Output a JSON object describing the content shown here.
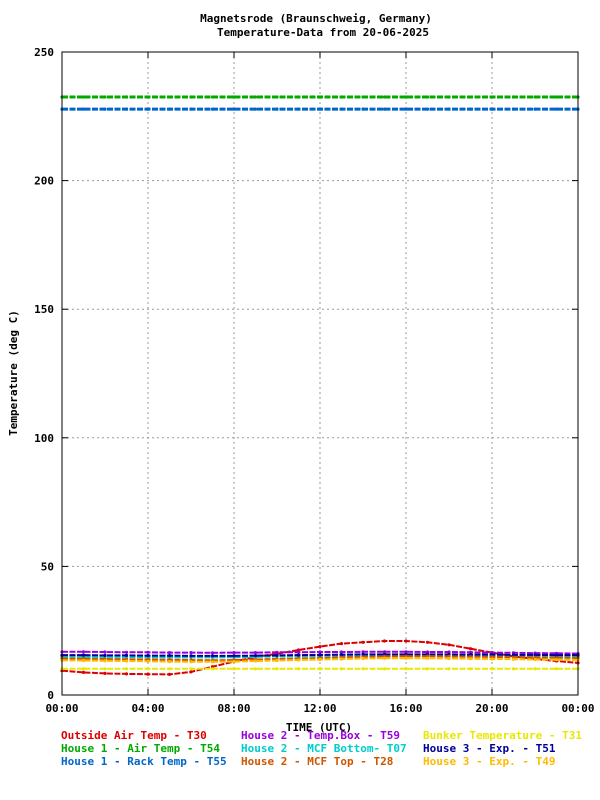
{
  "chart_data": {
    "type": "line",
    "title": "Magnetsrode (Braunschweig, Germany)",
    "subtitle": "Temperature-Data from 20-06-2025",
    "xlabel": "TIME (UTC)",
    "ylabel": "Temperature (deg C)",
    "xlim": [
      0,
      24
    ],
    "ylim": [
      0,
      250
    ],
    "x_ticks": [
      "00:00",
      "04:00",
      "08:00",
      "12:00",
      "16:00",
      "20:00",
      "00:00"
    ],
    "y_ticks": [
      0,
      50,
      100,
      150,
      200,
      250
    ],
    "grid": true,
    "legend_position": "bottom",
    "x_hours": [
      0,
      1,
      2,
      3,
      4,
      5,
      6,
      7,
      8,
      9,
      10,
      11,
      12,
      13,
      14,
      15,
      16,
      17,
      18,
      19,
      20,
      21,
      22,
      23,
      24
    ],
    "series": [
      {
        "name": "Outside Air Temp",
        "code": "T30",
        "color": "#dd0000",
        "values": [
          9.5,
          8.8,
          8.4,
          8.2,
          8.1,
          8.0,
          9.0,
          11.0,
          13.0,
          14.8,
          16.0,
          17.5,
          18.8,
          20.0,
          20.5,
          21.0,
          21.0,
          20.5,
          19.5,
          18.0,
          16.5,
          15.0,
          14.0,
          13.2,
          12.5
        ]
      },
      {
        "name": "House 2 - Temp.Box",
        "code": "T59",
        "color": "#9900dd",
        "values": [
          16.8,
          16.8,
          16.7,
          16.6,
          16.6,
          16.5,
          16.5,
          16.4,
          16.5,
          16.5,
          16.6,
          16.6,
          16.7,
          16.7,
          16.8,
          16.8,
          16.8,
          16.7,
          16.7,
          16.6,
          16.5,
          16.4,
          16.3,
          16.2,
          16.1
        ]
      },
      {
        "name": "Bunker Temperature",
        "code": "T31",
        "color": "#e8e800",
        "values": [
          10.2,
          10.2,
          10.2,
          10.2,
          10.2,
          10.2,
          10.2,
          10.2,
          10.2,
          10.2,
          10.2,
          10.2,
          10.2,
          10.2,
          10.2,
          10.2,
          10.2,
          10.2,
          10.2,
          10.2,
          10.2,
          10.2,
          10.2,
          10.2,
          10.2
        ]
      },
      {
        "name": "House 1 - Air  Temp",
        "code": "T54",
        "color": "#00aa00",
        "values": [
          232.5,
          232.5,
          232.5,
          232.5,
          232.5,
          232.5,
          232.5,
          232.5,
          232.5,
          232.5,
          232.5,
          232.5,
          232.5,
          232.5,
          232.5,
          232.5,
          232.5,
          232.5,
          232.5,
          232.5,
          232.5,
          232.5,
          232.5,
          232.5,
          232.5
        ]
      },
      {
        "name": "House 2 - MCF Bottom",
        "code": "T07",
        "color": "#00cccc",
        "values": [
          15.0,
          14.9,
          14.8,
          14.8,
          14.7,
          14.6,
          14.6,
          14.6,
          14.7,
          14.8,
          15.0,
          15.1,
          15.2,
          15.3,
          15.4,
          15.5,
          15.5,
          15.5,
          15.4,
          15.4,
          15.3,
          15.2,
          15.1,
          15.0,
          15.0
        ]
      },
      {
        "name": "House 3 - Exp.",
        "code": "T51",
        "color": "#000099",
        "values": [
          15.5,
          15.5,
          15.4,
          15.4,
          15.3,
          15.3,
          15.2,
          15.2,
          15.2,
          15.3,
          15.4,
          15.5,
          15.6,
          15.7,
          15.8,
          15.8,
          15.8,
          15.8,
          15.8,
          15.7,
          15.7,
          15.6,
          15.6,
          15.5,
          15.5
        ]
      },
      {
        "name": "House 1 - Rack Temp",
        "code": "T55",
        "color": "#0066cc",
        "values": [
          227.8,
          227.8,
          227.8,
          227.8,
          227.8,
          227.8,
          227.8,
          227.8,
          227.8,
          227.8,
          227.8,
          227.8,
          227.8,
          227.8,
          227.8,
          227.8,
          227.8,
          227.8,
          227.8,
          227.8,
          227.8,
          227.8,
          227.8,
          227.8,
          227.8
        ]
      },
      {
        "name": "House 2 - MCF Top",
        "code": "T28",
        "color": "#cc5500",
        "values": [
          14.2,
          14.1,
          14.0,
          13.9,
          13.8,
          13.7,
          13.6,
          13.5,
          13.6,
          13.8,
          14.0,
          14.2,
          14.4,
          14.6,
          14.8,
          15.0,
          15.1,
          15.1,
          15.0,
          14.9,
          14.8,
          14.7,
          14.6,
          14.5,
          14.4
        ]
      },
      {
        "name": "House 3 - Exp.",
        "code": "T49",
        "color": "#ffbb00",
        "values": [
          13.5,
          13.4,
          13.3,
          13.2,
          13.1,
          13.0,
          12.9,
          12.9,
          13.0,
          13.2,
          13.4,
          13.6,
          13.8,
          14.0,
          14.2,
          14.3,
          14.3,
          14.3,
          14.2,
          14.1,
          14.0,
          13.9,
          13.8,
          13.7,
          13.6
        ]
      }
    ],
    "legend_rows": [
      [
        {
          "label": "Outside Air Temp    - T30",
          "color": "#dd0000"
        },
        {
          "label": "House 2 - Temp.Box  - T59",
          "color": "#9900dd"
        },
        {
          "label": "Bunker Temperature  - T31",
          "color": "#e8e800"
        }
      ],
      [
        {
          "label": "House 1 - Air  Temp - T54",
          "color": "#00aa00"
        },
        {
          "label": "House 2 - MCF Bottom- T07",
          "color": "#00cccc"
        },
        {
          "label": "House 3 - Exp.      - T51",
          "color": "#000099"
        }
      ],
      [
        {
          "label": "House 1 - Rack Temp - T55",
          "color": "#0066cc"
        },
        {
          "label": "House 2 - MCF Top   - T28",
          "color": "#cc5500"
        },
        {
          "label": "House 3 - Exp.      - T49",
          "color": "#ffbb00"
        }
      ]
    ]
  }
}
